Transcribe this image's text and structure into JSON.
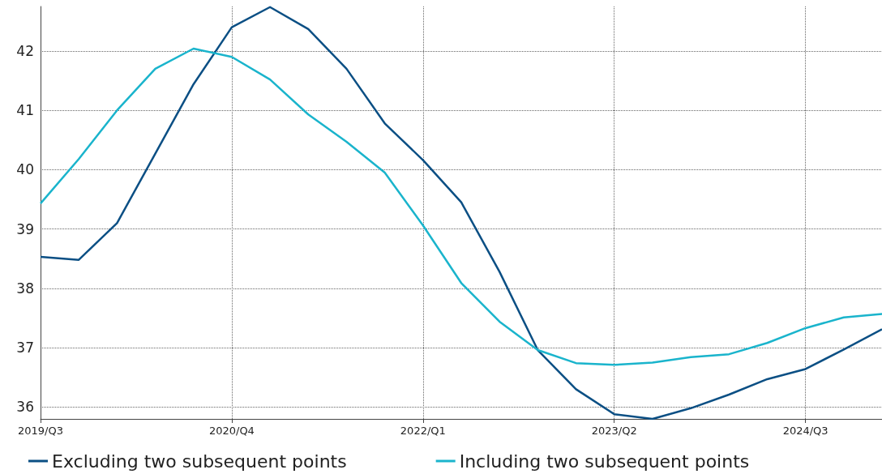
{
  "chart_data": {
    "type": "line",
    "categories": [
      "2019/Q3",
      null,
      null,
      null,
      null,
      "2020/Q4",
      null,
      null,
      null,
      null,
      "2022/Q1",
      null,
      null,
      null,
      null,
      "2023/Q2",
      null,
      null,
      null,
      null,
      "2024/Q3",
      null,
      null
    ],
    "series": [
      {
        "name": "Excluding two subsequent points",
        "color": "#0b4f84",
        "values": [
          38.53,
          38.48,
          39.1,
          40.27,
          41.44,
          42.4,
          42.74,
          42.37,
          41.7,
          40.78,
          40.16,
          39.45,
          38.28,
          36.96,
          36.3,
          35.88,
          35.8,
          35.98,
          36.21,
          36.47,
          36.64,
          36.97,
          37.31
        ]
      },
      {
        "name": "Including two subsequent points",
        "color": "#1ab4cc",
        "values": [
          39.43,
          40.18,
          41.0,
          41.7,
          42.04,
          41.9,
          41.52,
          40.93,
          40.47,
          39.95,
          39.06,
          38.09,
          37.44,
          36.96,
          36.74,
          36.71,
          36.75,
          36.84,
          36.89,
          37.08,
          37.33,
          37.51,
          37.57
        ]
      }
    ],
    "ylim": [
      35.8,
      42.75
    ],
    "yticks": [
      36,
      37,
      38,
      39,
      40,
      41,
      42
    ],
    "grid": true,
    "legend": "bottom left",
    "marker": "none",
    "line_style": "solid"
  }
}
